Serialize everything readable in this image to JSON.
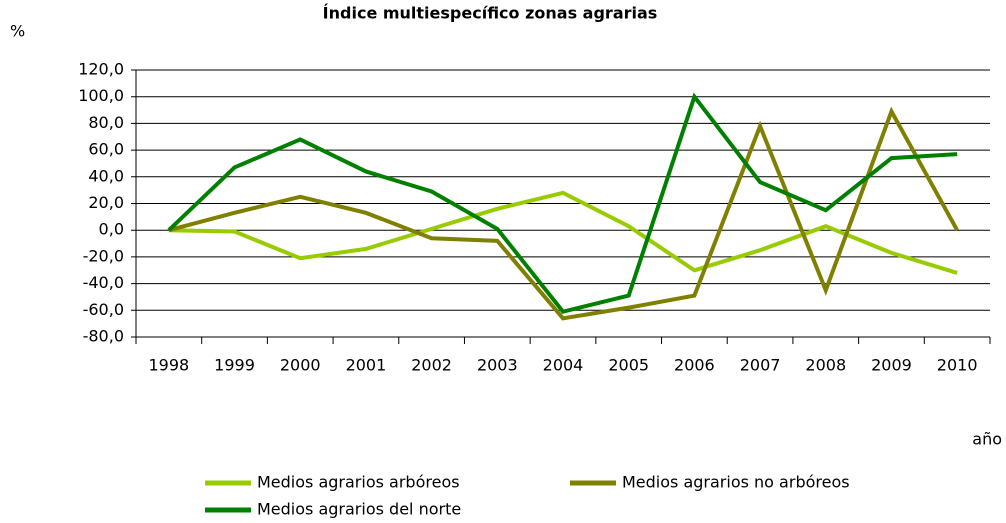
{
  "chart_data": {
    "type": "line",
    "title": "Índice multiespecífico zonas agrarias",
    "y_label": "%",
    "x_label": "año",
    "categories": [
      "1998",
      "1999",
      "2000",
      "2001",
      "2002",
      "2003",
      "2004",
      "2005",
      "2006",
      "2007",
      "2008",
      "2009",
      "2010"
    ],
    "series": [
      {
        "name": "Medios agrarios arbóreos",
        "color": "#99cc00",
        "values": [
          0,
          -1,
          -21,
          -14,
          1,
          16,
          28,
          3,
          -30,
          -15,
          3,
          -17,
          -32
        ]
      },
      {
        "name": "Medios agrarios no arbóreos",
        "color": "#808000",
        "values": [
          0,
          13,
          25,
          13,
          -6,
          -8,
          -66,
          -58,
          -49,
          78,
          -45,
          89,
          0
        ]
      },
      {
        "name": "Medios agrarios del norte",
        "color": "#008000",
        "values": [
          0,
          47,
          68,
          44,
          29,
          1,
          -61,
          -49,
          100,
          36,
          15,
          54,
          57
        ]
      }
    ],
    "ylim": [
      -80,
      120
    ],
    "yticks": [
      {
        "value": -80,
        "label": "-80,0"
      },
      {
        "value": -60,
        "label": "-60,0"
      },
      {
        "value": -40,
        "label": "-40,0"
      },
      {
        "value": -20,
        "label": "-20,0"
      },
      {
        "value": 0,
        "label": "0,0"
      },
      {
        "value": 20,
        "label": "20,0"
      },
      {
        "value": 40,
        "label": "40,0"
      },
      {
        "value": 60,
        "label": "60,0"
      },
      {
        "value": 80,
        "label": "80,0"
      },
      {
        "value": 100,
        "label": "100,0"
      },
      {
        "value": 120,
        "label": "120,0"
      }
    ],
    "grid": true
  }
}
